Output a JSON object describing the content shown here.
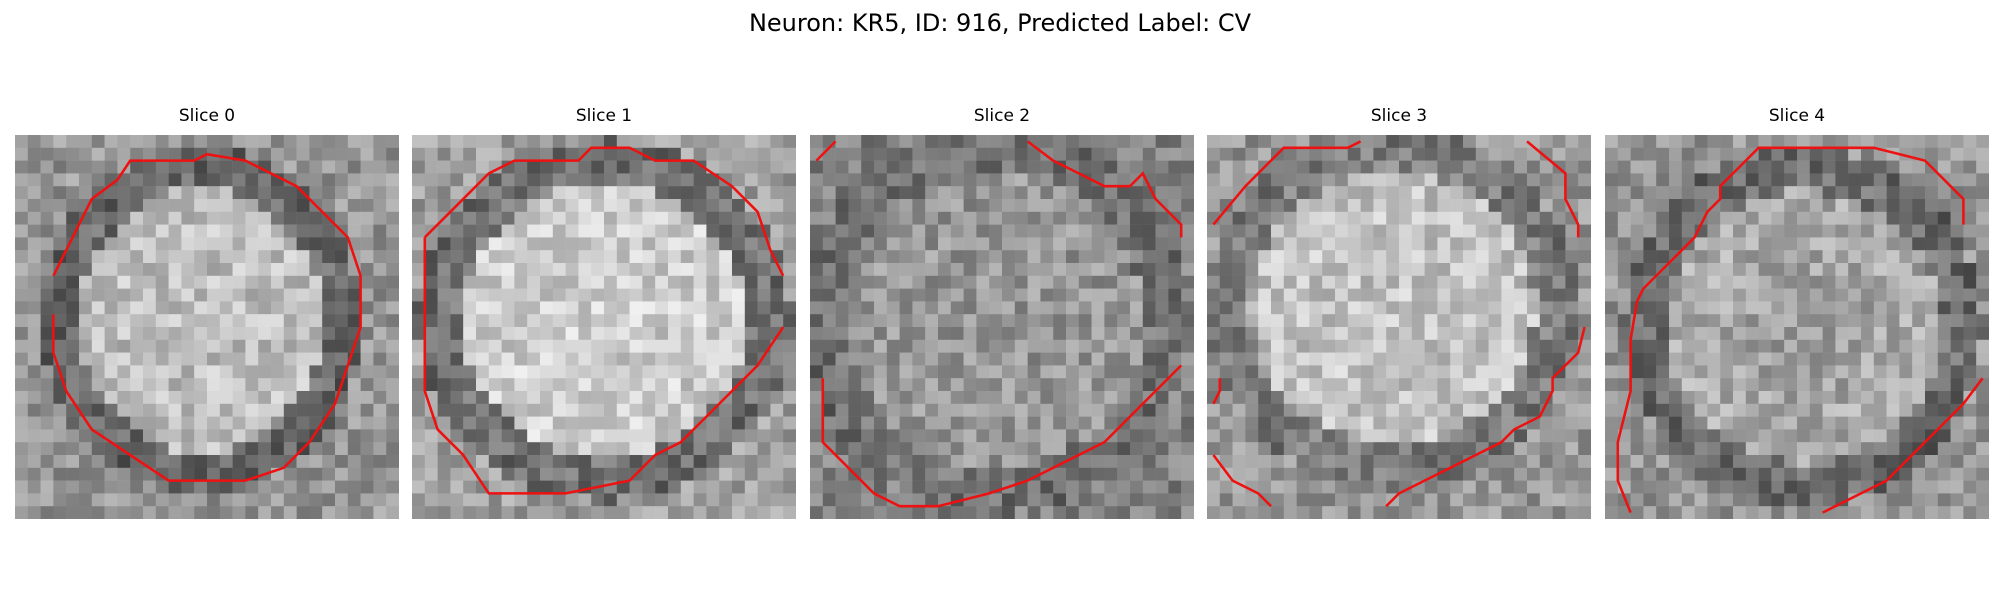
{
  "title": "Neuron: KR5, ID: 916, Predicted Label: CV",
  "panels": [
    {
      "title": "Slice 0"
    },
    {
      "title": "Slice 1"
    },
    {
      "title": "Slice 2"
    },
    {
      "title": "Slice 3"
    },
    {
      "title": "Slice 4"
    }
  ],
  "contour_color": "#ee1111"
}
